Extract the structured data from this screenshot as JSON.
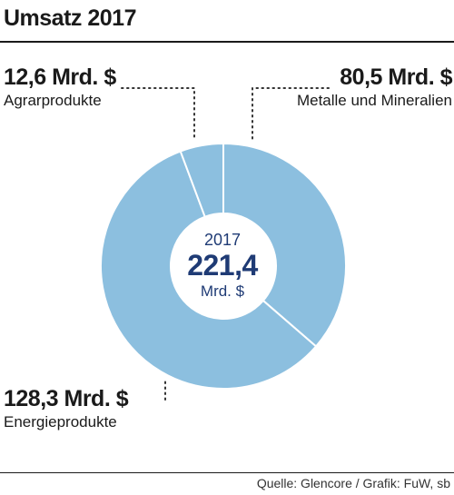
{
  "chart_data": {
    "type": "pie",
    "variant": "donut",
    "title": "Umsatz 2017",
    "center": {
      "year": "2017",
      "total": "221,4",
      "unit": "Mrd. $"
    },
    "slices": [
      {
        "category": "Metalle und Mineralien",
        "value": 80.5,
        "label": "80,5 Mrd. $"
      },
      {
        "category": "Energieprodukte",
        "value": 128.3,
        "label": "128,3 Mrd. $"
      },
      {
        "category": "Agrarprodukte",
        "value": 12.6,
        "label": "12,6 Mrd. $"
      }
    ],
    "colors": {
      "slice": "#8cbfdf",
      "separator": "#ffffff",
      "center_text": "#1f3b75",
      "leader": "#333333"
    }
  },
  "source": "Quelle: Glencore / Grafik: FuW, sb"
}
